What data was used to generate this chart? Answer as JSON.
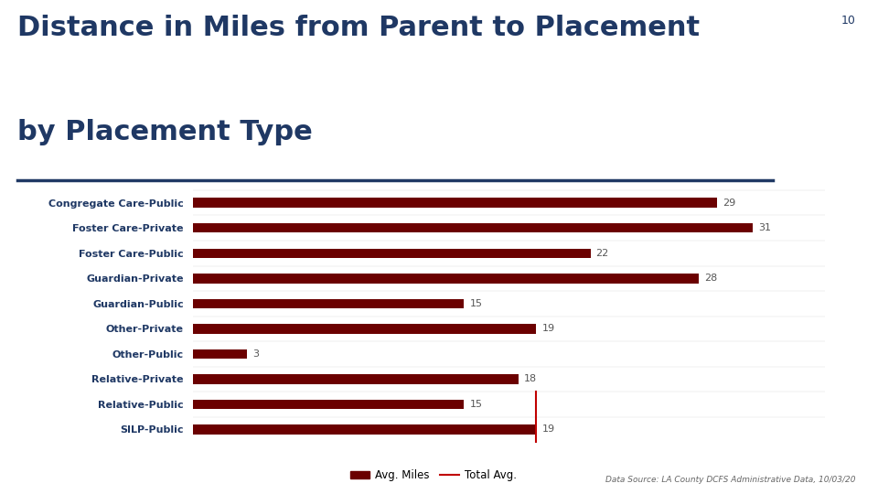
{
  "title_line1": "Distance in Miles from Parent to Placement",
  "title_line2": "by Placement Type",
  "slide_number": "10",
  "categories": [
    "Congregate Care-Public",
    "Foster Care-Private",
    "Foster Care-Public",
    "Guardian-Private",
    "Guardian-Public",
    "Other-Private",
    "Other-Public",
    "Relative-Private",
    "Relative-Public",
    "SILP-Public"
  ],
  "values": [
    29,
    31,
    22,
    28,
    15,
    19,
    3,
    18,
    15,
    19
  ],
  "bar_color": "#6B0000",
  "total_avg": 19,
  "total_avg_color": "#C00000",
  "background_color": "#FFFFFF",
  "title_color": "#1F3864",
  "label_color": "#1F3864",
  "value_label_color": "#555555",
  "separator_color": "#1F3864",
  "data_source": "Data Source: LA County DCFS Administrative Data, 10/03/20",
  "legend_avg_miles_label": "Avg. Miles",
  "legend_total_avg_label": "Total Avg.",
  "title_fontsize": 22,
  "label_fontsize": 8,
  "value_fontsize": 8
}
